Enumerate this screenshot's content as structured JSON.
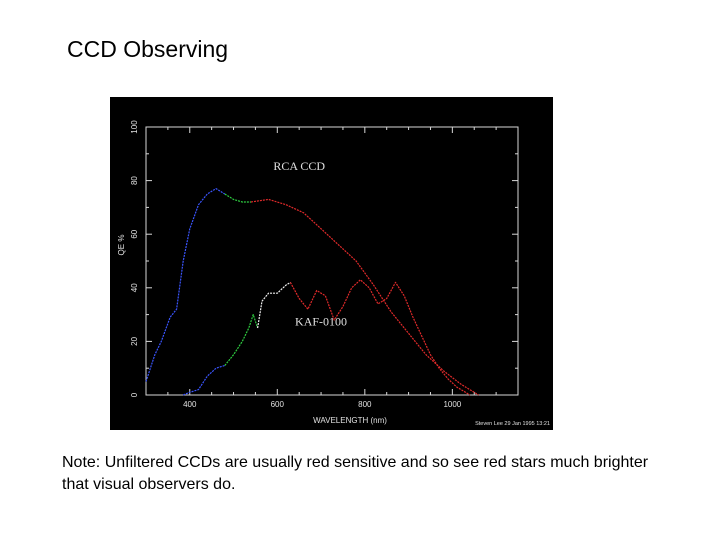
{
  "slide": {
    "title": "CCD Observing",
    "note": "Note:  Unfiltered CCDs are usually red sensitive and so see red stars much brighter that visual observers do."
  },
  "chart_data": {
    "type": "line",
    "xlabel": "WAVELENGTH (nm)",
    "ylabel": "QE %",
    "xlim": [
      300,
      1150
    ],
    "ylim": [
      0,
      100
    ],
    "x_ticks": [
      {
        "value": 400,
        "label": "400"
      },
      {
        "value": 600,
        "label": "600"
      },
      {
        "value": 800,
        "label": "800"
      },
      {
        "value": 1000,
        "label": "1000"
      }
    ],
    "y_ticks": [
      {
        "value": 0,
        "label": "0"
      },
      {
        "value": 20,
        "label": "20"
      },
      {
        "value": 40,
        "label": "40"
      },
      {
        "value": 60,
        "label": "60"
      },
      {
        "value": 80,
        "label": "80"
      },
      {
        "value": 100,
        "label": "100"
      }
    ],
    "grid": false,
    "colors": {
      "background": "#000000",
      "axis": "#d8d8d8",
      "label_text": "#e0e0e0",
      "blue_band": "#3a55ff",
      "green_band": "#2ecc40",
      "white_band": "#f2f2f2",
      "red_band": "#e02a2a"
    },
    "series": [
      {
        "name": "RCA CCD",
        "segments": [
          {
            "color": "blue_band",
            "points": [
              [
                300,
                5
              ],
              [
                320,
                15
              ],
              [
                335,
                20
              ],
              [
                355,
                29
              ],
              [
                370,
                32
              ],
              [
                385,
                50
              ],
              [
                400,
                62
              ],
              [
                420,
                71
              ],
              [
                440,
                75
              ],
              [
                460,
                77
              ],
              [
                480,
                75
              ]
            ]
          },
          {
            "color": "green_band",
            "points": [
              [
                480,
                75
              ],
              [
                500,
                73
              ],
              [
                520,
                72
              ],
              [
                540,
                72
              ]
            ]
          },
          {
            "color": "red_band",
            "points": [
              [
                540,
                72
              ],
              [
                580,
                73
              ],
              [
                620,
                71
              ],
              [
                660,
                68
              ],
              [
                700,
                62
              ],
              [
                740,
                56
              ],
              [
                780,
                50
              ],
              [
                820,
                41
              ],
              [
                860,
                31
              ],
              [
                900,
                23
              ],
              [
                940,
                15
              ],
              [
                980,
                9
              ],
              [
                1020,
                4
              ],
              [
                1060,
                0
              ]
            ]
          }
        ]
      },
      {
        "name": "KAF-0100",
        "segments": [
          {
            "color": "blue_band",
            "points": [
              [
                385,
                0
              ],
              [
                400,
                1
              ],
              [
                420,
                2
              ],
              [
                440,
                7
              ],
              [
                460,
                10
              ],
              [
                480,
                11
              ]
            ]
          },
          {
            "color": "green_band",
            "points": [
              [
                480,
                11
              ],
              [
                500,
                15
              ],
              [
                520,
                20
              ],
              [
                535,
                25
              ],
              [
                545,
                30
              ],
              [
                555,
                25
              ]
            ]
          },
          {
            "color": "white_band",
            "points": [
              [
                555,
                25
              ],
              [
                565,
                35
              ],
              [
                580,
                38
              ],
              [
                600,
                38
              ],
              [
                620,
                41
              ],
              [
                630,
                42
              ]
            ]
          },
          {
            "color": "red_band",
            "points": [
              [
                630,
                42
              ],
              [
                650,
                36
              ],
              [
                670,
                32
              ],
              [
                690,
                39
              ],
              [
                710,
                37
              ],
              [
                730,
                28
              ],
              [
                750,
                33
              ],
              [
                770,
                40
              ],
              [
                790,
                43
              ],
              [
                810,
                40
              ],
              [
                830,
                34
              ],
              [
                850,
                36
              ],
              [
                870,
                42
              ],
              [
                890,
                37
              ],
              [
                910,
                29
              ],
              [
                930,
                22
              ],
              [
                950,
                15
              ],
              [
                970,
                10
              ],
              [
                990,
                6
              ],
              [
                1010,
                3
              ],
              [
                1030,
                1
              ],
              [
                1040,
                0
              ]
            ]
          }
        ]
      }
    ],
    "annotations": [
      {
        "text": "RCA CCD",
        "x": 650,
        "y": 84
      },
      {
        "text": "KAF-0100",
        "x": 700,
        "y": 26
      }
    ],
    "credit": "Steven Lee 29 Jan 1995 13:21"
  }
}
